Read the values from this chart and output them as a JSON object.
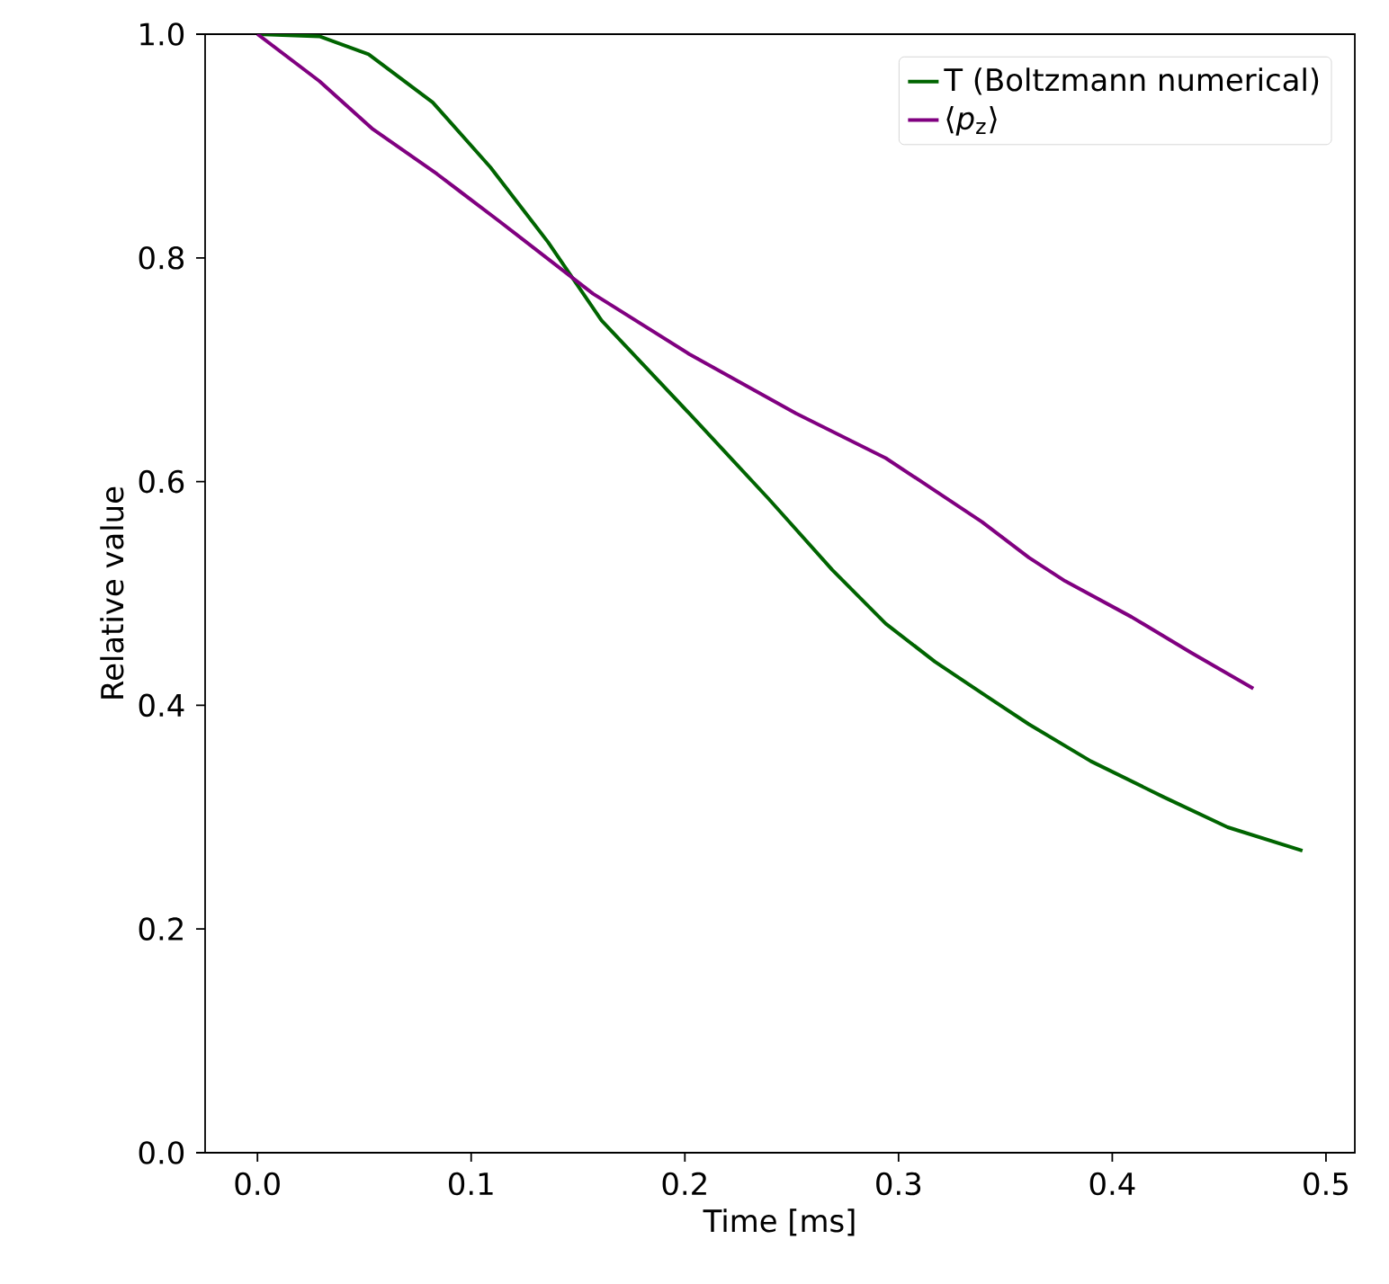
{
  "chart_data": {
    "type": "line",
    "xlabel": "Time [ms]",
    "ylabel": "Relative value",
    "xlim": [
      -0.0245,
      0.5135
    ],
    "ylim": [
      0,
      1
    ],
    "xticks": [
      {
        "value": 0,
        "label": "0.0"
      },
      0.1,
      0.2,
      0.3,
      0.4,
      0.5
    ],
    "yticks": [
      {
        "value": 0,
        "label": "0.0"
      },
      0.2,
      0.4,
      0.6,
      0.8,
      {
        "value": 1,
        "label": "1.0"
      }
    ],
    "legend": "top right",
    "grid": false,
    "marker": "none",
    "line_style": "solid",
    "series": [
      {
        "name": "T (Boltzmann numerical)",
        "color": "#006400",
        "x": [
          0,
          0.029,
          0.052,
          0.082,
          0.109,
          0.136,
          0.161,
          0.202,
          0.239,
          0.269,
          0.294,
          0.317,
          0.342,
          0.361,
          0.39,
          0.424,
          0.454,
          0.489
        ],
        "values": [
          1.0,
          0.998,
          0.982,
          0.939,
          0.881,
          0.814,
          0.744,
          0.661,
          0.585,
          0.521,
          0.473,
          0.439,
          0.407,
          0.383,
          0.35,
          0.318,
          0.291,
          0.27
        ]
      },
      {
        "name": "⟨*p*$_{z}$⟩",
        "color": "#800080",
        "x": [
          0,
          0.029,
          0.054,
          0.084,
          0.113,
          0.157,
          0.202,
          0.252,
          0.294,
          0.317,
          0.339,
          0.361,
          0.378,
          0.409,
          0.437,
          0.466
        ],
        "values": [
          1.0,
          0.958,
          0.915,
          0.875,
          0.833,
          0.768,
          0.714,
          0.661,
          0.621,
          0.592,
          0.564,
          0.532,
          0.511,
          0.479,
          0.447,
          0.415
        ]
      }
    ]
  }
}
